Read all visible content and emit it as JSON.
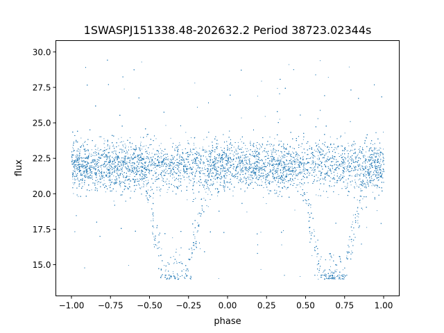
{
  "chart_data": {
    "type": "scatter",
    "title": "1SWASPJ151338.48-202632.2 Period 38723.02344s",
    "xlabel": "phase",
    "ylabel": "flux",
    "xlim": [
      -1.1,
      1.1
    ],
    "ylim": [
      12.8,
      30.8
    ],
    "xticks": [
      "−1.00",
      "−0.75",
      "−0.50",
      "−0.25",
      "0.00",
      "0.25",
      "0.50",
      "0.75",
      "1.00"
    ],
    "xtick_values": [
      -1.0,
      -0.75,
      -0.5,
      -0.25,
      0.0,
      0.25,
      0.5,
      0.75,
      1.0
    ],
    "yticks": [
      "15.0",
      "17.5",
      "20.0",
      "22.5",
      "25.0",
      "27.5",
      "30.0"
    ],
    "ytick_values": [
      15.0,
      17.5,
      20.0,
      22.5,
      25.0,
      27.5,
      30.0
    ],
    "grid": false,
    "marker_color": "#1f77b4",
    "phase_range": [
      -1.0,
      1.0
    ],
    "baseline_flux": 22.0,
    "baseline_spread": 1.0,
    "flux_range": [
      14.0,
      29.8
    ],
    "eclipses": [
      {
        "phase_center": -0.33,
        "half_width": 0.22,
        "min_flux": 14.2
      },
      {
        "phase_center": 0.67,
        "half_width": 0.22,
        "min_flux": 14.2
      }
    ]
  }
}
